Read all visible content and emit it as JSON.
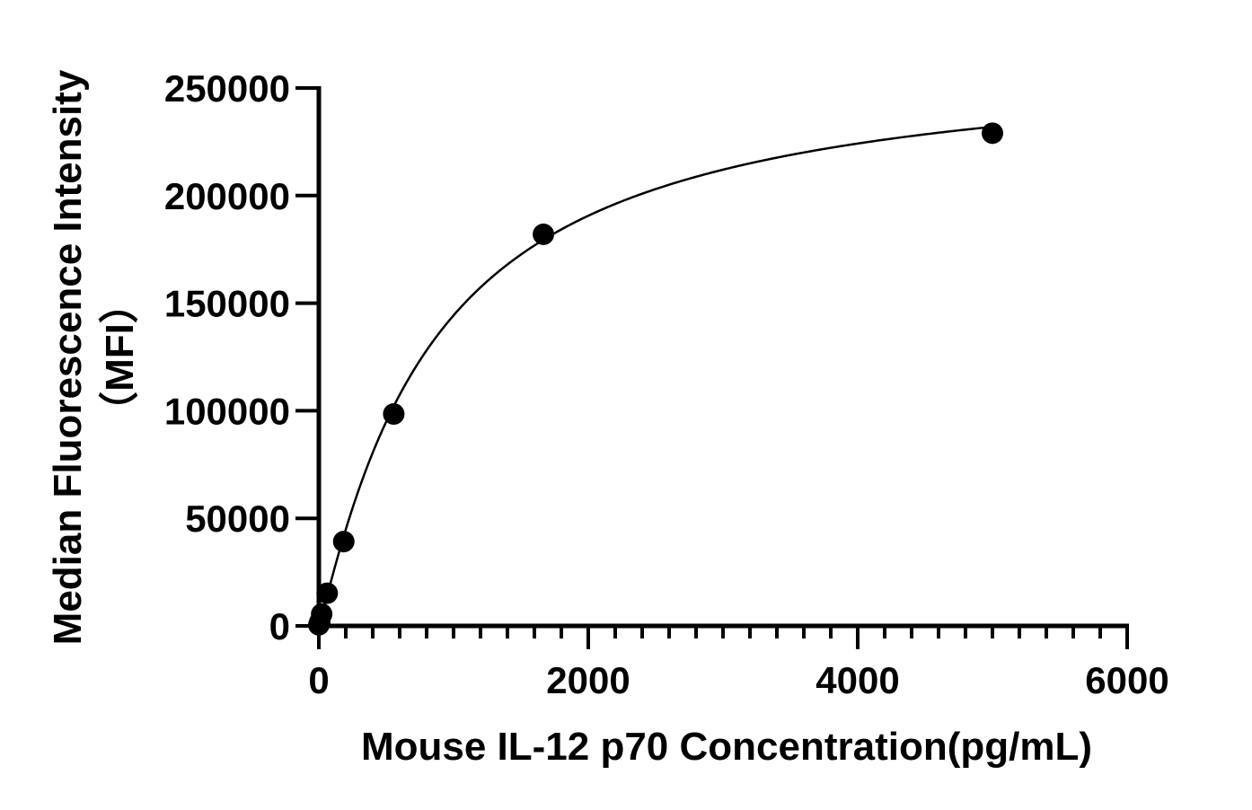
{
  "chart_data": {
    "type": "scatter",
    "title": "",
    "xlabel": "Mouse IL-12 p70 Concentration(pg/mL)",
    "ylabel_lines": [
      "Median Fluorescence Intensity",
      "（MFI）"
    ],
    "xlim": [
      0,
      6000
    ],
    "ylim": [
      0,
      250000
    ],
    "x_ticks": [
      0,
      2000,
      4000,
      6000
    ],
    "x_tick_labels": [
      "0",
      "2000",
      "4000",
      "6000"
    ],
    "x_minor_step": 200,
    "y_ticks": [
      0,
      50000,
      100000,
      150000,
      200000,
      250000
    ],
    "y_tick_labels": [
      "0",
      "50000",
      "100000",
      "150000",
      "200000",
      "250000"
    ],
    "grid": false,
    "legend": "none",
    "series": [
      {
        "points": [
          {
            "x": 0,
            "y": 500
          },
          {
            "x": 7,
            "y": 1800
          },
          {
            "x": 21,
            "y": 5500
          },
          {
            "x": 62,
            "y": 15200
          },
          {
            "x": 185,
            "y": 39200
          },
          {
            "x": 556,
            "y": 98500
          },
          {
            "x": 1667,
            "y": 182000
          },
          {
            "x": 5000,
            "y": 229000
          }
        ],
        "fit": "saturation-curve"
      }
    ],
    "colors": {
      "marker": "#000000",
      "line": "#000000"
    }
  }
}
